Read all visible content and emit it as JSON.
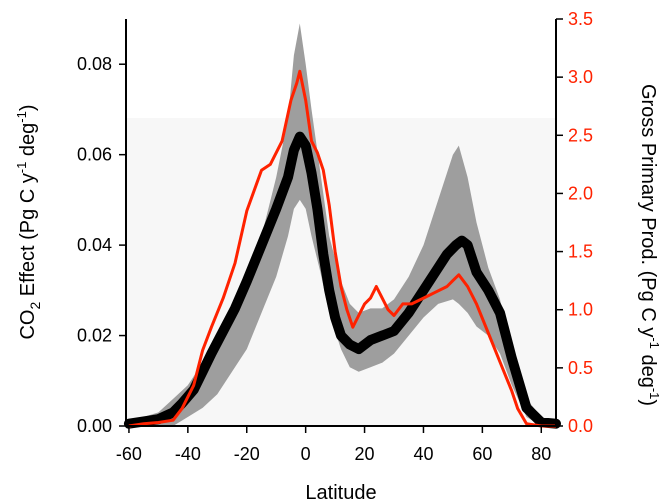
{
  "chart_data": {
    "type": "line",
    "xlabel": "Latitude",
    "ylabel_left": {
      "main": "CO",
      "sub": "2",
      "rest": " Effect (Pg C y",
      "sup": "-1",
      "rest2": " deg",
      "sup2": "-1",
      "end": ")"
    },
    "ylabel_right": {
      "main": "Gross Primary Prod. (Pg C y",
      "sup": "-1",
      "rest": " deg",
      "sup2": "-1",
      "end": ")"
    },
    "xlim": [
      -61,
      85
    ],
    "ylim_left": [
      0,
      0.09
    ],
    "ylim_right": [
      0,
      3.5
    ],
    "x_ticks": [
      "-60",
      "-40",
      "-20",
      "0",
      "20",
      "40",
      "60",
      "80"
    ],
    "y_left_ticks": [
      "0.00",
      "0.02",
      "0.04",
      "0.06",
      "0.08"
    ],
    "y_right_ticks": [
      "0.0",
      "0.5",
      "1.0",
      "1.5",
      "2.0",
      "2.5",
      "3.0",
      "3.5"
    ],
    "colors": {
      "co2": "#000000",
      "gpp": "#ff2200",
      "band": "#9e9e9e",
      "right_axis": "#ff2200"
    },
    "series": [
      {
        "axis": "left",
        "x": [
          -60,
          -55,
          -50,
          -45,
          -42,
          -38,
          -35,
          -32,
          -28,
          -24,
          -20,
          -15,
          -10,
          -6,
          -4,
          -2,
          0,
          2,
          4,
          6,
          8,
          10,
          12,
          15,
          18,
          22,
          26,
          30,
          35,
          40,
          45,
          48,
          51,
          53,
          55,
          58,
          62,
          66,
          70,
          75,
          80,
          85
        ],
        "values": [
          0.0005,
          0.001,
          0.0015,
          0.003,
          0.005,
          0.008,
          0.012,
          0.016,
          0.021,
          0.026,
          0.032,
          0.04,
          0.048,
          0.055,
          0.061,
          0.064,
          0.062,
          0.056,
          0.048,
          0.038,
          0.03,
          0.024,
          0.02,
          0.018,
          0.017,
          0.019,
          0.02,
          0.021,
          0.025,
          0.03,
          0.035,
          0.038,
          0.04,
          0.041,
          0.04,
          0.034,
          0.03,
          0.025,
          0.015,
          0.004,
          0.0008,
          0.0005
        ]
      },
      {
        "axis": "right",
        "x": [
          -60,
          -55,
          -50,
          -45,
          -42,
          -38,
          -35,
          -32,
          -28,
          -24,
          -20,
          -15,
          -12,
          -8,
          -5,
          -3,
          -2,
          0,
          2,
          4,
          6,
          8,
          10,
          12,
          14,
          16,
          18,
          20,
          22,
          24,
          26,
          28,
          30,
          33,
          36,
          40,
          44,
          48,
          50,
          52,
          55,
          58,
          62,
          66,
          70,
          72,
          75,
          80,
          85
        ],
        "values": [
          0.0,
          0.02,
          0.03,
          0.05,
          0.15,
          0.35,
          0.65,
          0.85,
          1.1,
          1.4,
          1.85,
          2.2,
          2.25,
          2.45,
          2.8,
          2.95,
          3.05,
          2.8,
          2.45,
          2.35,
          2.2,
          1.9,
          1.5,
          1.2,
          1.0,
          0.85,
          0.95,
          1.05,
          1.1,
          1.2,
          1.1,
          1.0,
          0.95,
          1.05,
          1.05,
          1.1,
          1.15,
          1.2,
          1.25,
          1.3,
          1.2,
          1.05,
          0.8,
          0.55,
          0.3,
          0.15,
          0.02,
          0.0,
          0.0
        ]
      }
    ],
    "band_left": {
      "x": [
        -60,
        -50,
        -45,
        -40,
        -35,
        -30,
        -25,
        -20,
        -15,
        -10,
        -6,
        -4,
        -2,
        0,
        2,
        5,
        8,
        12,
        15,
        18,
        22,
        26,
        30,
        35,
        40,
        45,
        50,
        52,
        55,
        58,
        62,
        66,
        70,
        75,
        80,
        85
      ],
      "upper": [
        0.001,
        0.003,
        0.006,
        0.009,
        0.014,
        0.02,
        0.025,
        0.03,
        0.042,
        0.055,
        0.068,
        0.082,
        0.089,
        0.08,
        0.07,
        0.056,
        0.042,
        0.032,
        0.027,
        0.025,
        0.026,
        0.026,
        0.028,
        0.033,
        0.04,
        0.05,
        0.06,
        0.062,
        0.055,
        0.045,
        0.035,
        0.028,
        0.016,
        0.006,
        0.002,
        0.001
      ],
      "lower": [
        0.0,
        0.0,
        0.0,
        0.002,
        0.004,
        0.007,
        0.012,
        0.017,
        0.025,
        0.033,
        0.042,
        0.048,
        0.05,
        0.048,
        0.042,
        0.034,
        0.025,
        0.017,
        0.013,
        0.012,
        0.013,
        0.014,
        0.016,
        0.02,
        0.024,
        0.027,
        0.028,
        0.027,
        0.025,
        0.022,
        0.02,
        0.016,
        0.009,
        0.002,
        0.0,
        0.0
      ]
    }
  }
}
